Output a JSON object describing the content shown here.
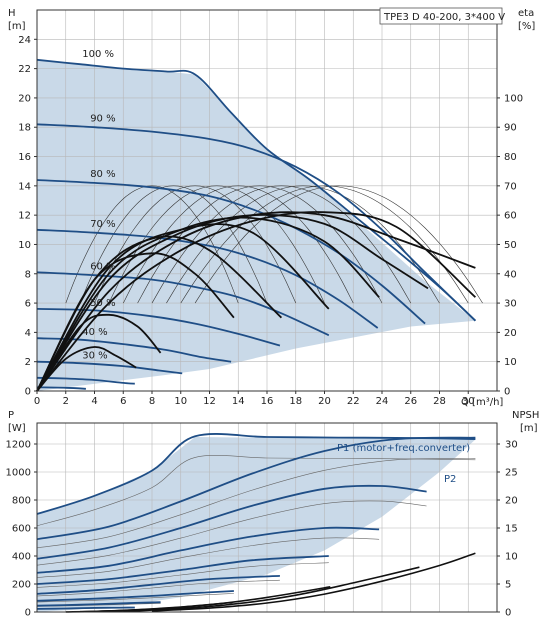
{
  "title": "TPE3 D 40-200, 3*400 V",
  "chart_data": [
    {
      "type": "line",
      "panel": "head",
      "left_axis": {
        "label": "H",
        "unit": "[m]",
        "ylim": [
          0,
          26
        ],
        "ticks": [
          0,
          2,
          4,
          6,
          8,
          10,
          12,
          14,
          16,
          18,
          20,
          22,
          24
        ]
      },
      "right_axis": {
        "label": "eta",
        "unit": "[%]",
        "ylim": [
          0,
          130
        ],
        "ticks": [
          0,
          10,
          20,
          30,
          40,
          50,
          60,
          70,
          80,
          90,
          100
        ]
      },
      "x_axis": {
        "label": "Q [m³/h]",
        "xlim": [
          0,
          32
        ],
        "ticks": [
          0,
          2,
          4,
          6,
          8,
          10,
          12,
          14,
          16,
          18,
          20,
          22,
          24,
          26,
          28,
          30
        ]
      },
      "grid": true,
      "speed_labels": [
        "100 %",
        "90 %",
        "80 %",
        "70 %",
        "60 %",
        "50 %",
        "40 %",
        "30 %"
      ],
      "envelope": [
        [
          0,
          22.6
        ],
        [
          3,
          22.3
        ],
        [
          6,
          22.0
        ],
        [
          9,
          21.8
        ],
        [
          11,
          21.6
        ],
        [
          13.5,
          19.0
        ],
        [
          16,
          16.5
        ],
        [
          19,
          14.4
        ],
        [
          20,
          13.6
        ],
        [
          23,
          11.0
        ],
        [
          27,
          7.5
        ],
        [
          30.5,
          4.8
        ],
        [
          26,
          4.4
        ],
        [
          18,
          2.9
        ],
        [
          12,
          1.5
        ],
        [
          9,
          1.1
        ],
        [
          0,
          0
        ]
      ],
      "series": [
        {
          "name": "100 %",
          "speed": 1.0,
          "x": [
            0,
            3,
            6,
            9,
            11,
            13.5,
            16,
            19,
            22,
            25,
            28,
            30.5
          ],
          "y": [
            22.6,
            22.3,
            22.0,
            21.8,
            21.6,
            19.0,
            16.5,
            14.4,
            12.0,
            9.6,
            7.1,
            4.8
          ]
        },
        {
          "name": "90 %",
          "speed": 0.9,
          "x": [
            0,
            4,
            8,
            12,
            15,
            18,
            21,
            24,
            27,
            30.5
          ],
          "y": [
            18.2,
            18.0,
            17.7,
            17.2,
            16.5,
            15.3,
            13.5,
            11.0,
            8.1,
            4.8
          ]
        },
        {
          "name": "80 %",
          "speed": 0.8,
          "x": [
            0,
            4,
            8,
            12,
            15,
            18,
            21,
            24,
            27
          ],
          "y": [
            14.4,
            14.2,
            13.9,
            13.3,
            12.4,
            11.1,
            9.4,
            7.2,
            4.6
          ]
        },
        {
          "name": "70 %",
          "speed": 0.7,
          "x": [
            0,
            4,
            8,
            12,
            15,
            18,
            21,
            23.7
          ],
          "y": [
            11.0,
            10.8,
            10.5,
            9.9,
            9.1,
            7.9,
            6.2,
            4.3
          ]
        },
        {
          "name": "60 %",
          "speed": 0.6,
          "x": [
            0,
            4,
            8,
            11,
            14,
            17,
            20.3
          ],
          "y": [
            8.1,
            7.9,
            7.6,
            7.1,
            6.4,
            5.3,
            3.8
          ]
        },
        {
          "name": "50 %",
          "speed": 0.5,
          "x": [
            0,
            4,
            8,
            11,
            14,
            16.9
          ],
          "y": [
            5.6,
            5.5,
            5.1,
            4.6,
            3.9,
            3.1
          ]
        },
        {
          "name": "40 %",
          "speed": 0.4,
          "x": [
            0,
            3,
            6,
            9,
            11.5,
            13.5
          ],
          "y": [
            3.6,
            3.5,
            3.2,
            2.8,
            2.3,
            2.0
          ]
        },
        {
          "name": "30 %",
          "speed": 0.3,
          "x": [
            0,
            3,
            6,
            8.5,
            10.1
          ],
          "y": [
            2.0,
            1.9,
            1.7,
            1.4,
            1.2
          ]
        },
        {
          "name": "20 %",
          "speed": 0.2,
          "x": [
            0,
            2,
            4,
            6,
            6.8
          ],
          "y": [
            0.9,
            0.85,
            0.75,
            0.55,
            0.5
          ]
        },
        {
          "name": "10 %",
          "speed": 0.1,
          "x": [
            0,
            2,
            3.4
          ],
          "y": [
            0.25,
            0.22,
            0.15
          ]
        }
      ],
      "eta_series": [
        {
          "name": "eta 100 %",
          "x": [
            0,
            5,
            10,
            15,
            20,
            25,
            30.5
          ],
          "y": [
            0,
            30,
            48,
            58,
            61,
            56,
            32
          ]
        },
        {
          "name": "eta 90 %",
          "x": [
            0,
            5,
            10,
            15,
            20,
            25,
            30.5
          ],
          "y": [
            0,
            34,
            52,
            60,
            60,
            52,
            42
          ]
        },
        {
          "name": "eta 80 %",
          "x": [
            0,
            5,
            10,
            15,
            20,
            24,
            27.2
          ],
          "y": [
            0,
            38,
            54,
            60,
            57,
            45,
            35
          ]
        },
        {
          "name": "eta 70 %",
          "x": [
            0,
            5,
            10,
            15,
            20,
            23.8
          ],
          "y": [
            0,
            40,
            55,
            59,
            51,
            32
          ]
        },
        {
          "name": "eta 60 %",
          "x": [
            0,
            5,
            10,
            15,
            20.3
          ],
          "y": [
            0,
            42,
            55,
            54,
            28
          ]
        },
        {
          "name": "eta 50 %",
          "x": [
            0,
            4,
            8,
            12,
            17
          ],
          "y": [
            0,
            38,
            52,
            48,
            25
          ]
        },
        {
          "name": "eta 40 %",
          "x": [
            0,
            4,
            8,
            11,
            13.7
          ],
          "y": [
            0,
            38,
            47,
            40,
            25
          ]
        },
        {
          "name": "eta 30 %",
          "x": [
            0,
            3,
            5,
            7,
            8.6
          ],
          "y": [
            0,
            22,
            26,
            22,
            13
          ]
        },
        {
          "name": "eta 20 %",
          "x": [
            0,
            2,
            4,
            5.5,
            6.9
          ],
          "y": [
            0,
            11,
            15,
            12,
            8
          ]
        }
      ]
    },
    {
      "type": "line",
      "panel": "power",
      "left_axis": {
        "label": "P",
        "unit": "[W]",
        "ylim": [
          0,
          1350
        ],
        "ticks": [
          0,
          200,
          400,
          600,
          800,
          1000,
          1200
        ]
      },
      "right_axis": {
        "label": "NPSH",
        "unit": "[m]",
        "ylim": [
          0,
          33.75
        ],
        "ticks": [
          0,
          5,
          10,
          15,
          20,
          25,
          30
        ]
      },
      "annotations": [
        "P1 (motor+freq.converter)",
        "P2"
      ],
      "envelope": [
        [
          0,
          700
        ],
        [
          4,
          830
        ],
        [
          8,
          1010
        ],
        [
          11,
          1250
        ],
        [
          16,
          1245
        ],
        [
          21,
          1242
        ],
        [
          26,
          1240
        ],
        [
          30.5,
          1232
        ],
        [
          28,
          1000
        ],
        [
          24,
          680
        ],
        [
          20,
          440
        ],
        [
          16,
          270
        ],
        [
          10,
          105
        ],
        [
          6,
          45
        ],
        [
          2,
          12
        ],
        [
          0,
          0
        ]
      ],
      "series": [
        {
          "name": "P1 100 %",
          "x": [
            0,
            4,
            8,
            11,
            16,
            21,
            26,
            30.5
          ],
          "y": [
            700,
            830,
            1010,
            1255,
            1250,
            1246,
            1243,
            1235
          ]
        },
        {
          "name": "P1 90 %",
          "x": [
            0,
            5,
            10,
            15,
            20,
            25,
            30.5
          ],
          "y": [
            520,
            610,
            790,
            990,
            1150,
            1235,
            1245
          ]
        },
        {
          "name": "P1 80 %",
          "x": [
            0,
            5,
            10,
            15,
            20,
            24,
            27.1
          ],
          "y": [
            380,
            460,
            600,
            760,
            880,
            900,
            860
          ]
        },
        {
          "name": "P1 70 %",
          "x": [
            0,
            5,
            10,
            15,
            20,
            23.8
          ],
          "y": [
            280,
            330,
            440,
            540,
            600,
            590
          ]
        },
        {
          "name": "P1 60 %",
          "x": [
            0,
            5,
            10,
            15,
            20.3
          ],
          "y": [
            200,
            235,
            300,
            370,
            400
          ]
        },
        {
          "name": "P1 50 %",
          "x": [
            0,
            4,
            8,
            12,
            16.9
          ],
          "y": [
            130,
            155,
            195,
            235,
            258
          ]
        },
        {
          "name": "P1 40 %",
          "x": [
            0,
            4,
            8,
            11,
            13.7
          ],
          "y": [
            80,
            95,
            115,
            135,
            150
          ]
        },
        {
          "name": "P1 30 %",
          "x": [
            0,
            3,
            6,
            8.6
          ],
          "y": [
            45,
            52,
            62,
            70
          ]
        },
        {
          "name": "P1 20 %",
          "x": [
            0,
            2,
            4,
            6.8
          ],
          "y": [
            22,
            25,
            29,
            32
          ]
        }
      ],
      "npsh_series": [
        {
          "name": "NPSH 100 %",
          "x": [
            8,
            12,
            16,
            20,
            24,
            28,
            30.5
          ],
          "y": [
            0.2,
            0.7,
            1.6,
            3.2,
            5.5,
            8.3,
            10.5
          ]
        },
        {
          "name": "NPSH 80 %",
          "x": [
            6,
            10,
            14,
            18,
            22,
            26.6
          ],
          "y": [
            0.1,
            0.6,
            1.5,
            3.0,
            5.2,
            8.0
          ]
        },
        {
          "name": "NPSH 60 %",
          "x": [
            4,
            8,
            12,
            16,
            20.4
          ],
          "y": [
            0.1,
            0.5,
            1.3,
            2.6,
            4.5
          ]
        },
        {
          "name": "NPSH 40 %",
          "x": [
            3,
            6,
            10,
            13.6
          ],
          "y": [
            0.05,
            0.3,
            0.9,
            1.7
          ]
        },
        {
          "name": "NPSH 20 %",
          "x": [
            2,
            4,
            6.8
          ],
          "y": [
            0.02,
            0.1,
            0.3
          ]
        }
      ]
    }
  ]
}
